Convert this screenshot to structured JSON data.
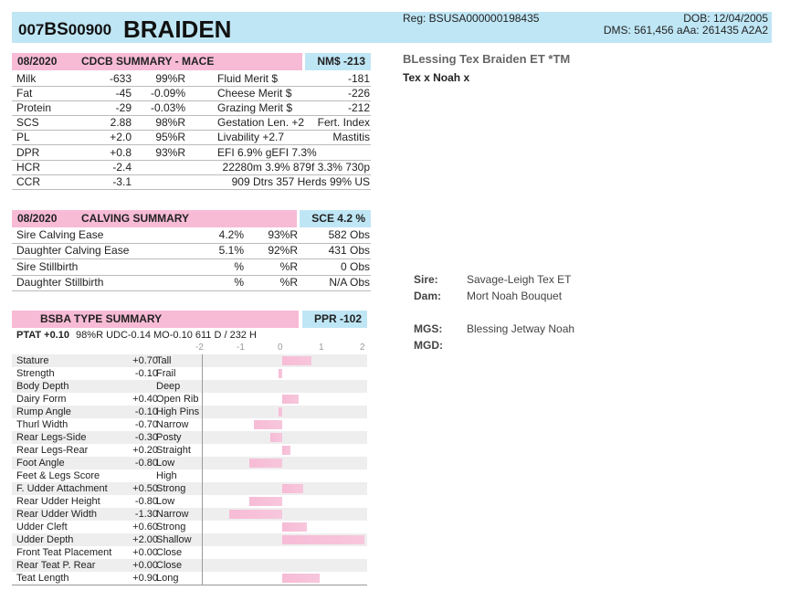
{
  "header": {
    "id_prefix": "007",
    "id_breed": "BS",
    "id_number": "00900",
    "name": "BRAIDEN",
    "reg": "Reg: BSUSA000000198435",
    "dob": "DOB: 12/04/2005",
    "dms": "DMS: 561,456  aAa: 261435    A2A2"
  },
  "cdcb": {
    "date": "08/2020",
    "title": "CDCB SUMMARY - MACE",
    "nm": "NM$ -213",
    "rows": [
      {
        "trait": "Milk",
        "value": "-633",
        "rel": "99%R",
        "merit": "Fluid Merit $",
        "merit_val": "-181"
      },
      {
        "trait": "Fat",
        "value": "-45",
        "rel": "-0.09%",
        "merit": "Cheese Merit $",
        "merit_val": "-226"
      },
      {
        "trait": "Protein",
        "value": "-29",
        "rel": "-0.03%",
        "merit": "Grazing Merit $",
        "merit_val": "-212"
      },
      {
        "trait": "SCS",
        "value": "2.88",
        "rel": "98%R",
        "merit": "Gestation Len. +2",
        "merit_val": "Fert. Index"
      },
      {
        "trait": "PL",
        "value": "+2.0",
        "rel": "95%R",
        "merit": "Livability   +2.7",
        "merit_val": "Mastitis"
      },
      {
        "trait": "DPR",
        "value": "+0.8",
        "rel": "93%R",
        "merit": "EFI  6.9%  gEFI  7.3%",
        "merit_val": ""
      },
      {
        "trait": "HCR",
        "value": "-2.4",
        "rel": "",
        "merit": "",
        "merit_val": "22280m  3.9%  879f  3.3%  730p"
      },
      {
        "trait": "CCR",
        "value": "-3.1",
        "rel": "",
        "merit": "",
        "merit_val": "909 Dtrs   357 Herds   99% US"
      }
    ]
  },
  "calving": {
    "date": "08/2020",
    "title": "CALVING SUMMARY",
    "sce": "SCE 4.2 %",
    "rows": [
      {
        "label": "Sire Calving Ease",
        "pct": "4.2%",
        "rel": "93%R",
        "obs": "582 Obs"
      },
      {
        "label": "Daughter Calving Ease",
        "pct": "5.1%",
        "rel": "92%R",
        "obs": "431 Obs"
      },
      {
        "label": "Sire Stillbirth",
        "pct": "%",
        "rel": "%R",
        "obs": "0 Obs"
      },
      {
        "label": "Daughter Stillbirth",
        "pct": "%",
        "rel": "%R",
        "obs": "N/A Obs"
      }
    ]
  },
  "type": {
    "title": "BSBA TYPE SUMMARY",
    "ppr": "PPR -102",
    "ptat_label": "PTAT +0.10",
    "ptat_rest": "98%R   UDC-0.14   MO-0.10     611 D / 232 H",
    "scale": [
      "-2",
      "-1",
      "0",
      "1",
      "2"
    ],
    "traits": [
      {
        "name": "Stature",
        "value": "+0.70",
        "desc": "Tall",
        "v": 0.7
      },
      {
        "name": "Strength",
        "value": "-0.10",
        "desc": "Frail",
        "v": -0.1
      },
      {
        "name": "Body Depth",
        "value": "",
        "desc": "Deep",
        "v": 0
      },
      {
        "name": "Dairy Form",
        "value": "+0.40",
        "desc": "Open Rib",
        "v": 0.4
      },
      {
        "name": "Rump Angle",
        "value": "-0.10",
        "desc": "High Pins",
        "v": -0.1
      },
      {
        "name": "Thurl Width",
        "value": "-0.70",
        "desc": "Narrow",
        "v": -0.7
      },
      {
        "name": "Rear Legs-Side",
        "value": "-0.30",
        "desc": "Posty",
        "v": -0.3
      },
      {
        "name": "Rear Legs-Rear",
        "value": "+0.20",
        "desc": "Straight",
        "v": 0.2
      },
      {
        "name": "Foot Angle",
        "value": "-0.80",
        "desc": "Low",
        "v": -0.8
      },
      {
        "name": "Feet & Legs Score",
        "value": "",
        "desc": "High",
        "v": 0
      },
      {
        "name": "F. Udder Attachment",
        "value": "+0.50",
        "desc": "Strong",
        "v": 0.5
      },
      {
        "name": "Rear Udder Height",
        "value": "-0.80",
        "desc": "Low",
        "v": -0.8
      },
      {
        "name": "Rear Udder Width",
        "value": "-1.30",
        "desc": "Narrow",
        "v": -1.3
      },
      {
        "name": "Udder Cleft",
        "value": "+0.60",
        "desc": "Strong",
        "v": 0.6
      },
      {
        "name": "Udder Depth",
        "value": "+2.00",
        "desc": "Shallow",
        "v": 2.0
      },
      {
        "name": "Front Teat Placement",
        "value": "+0.00",
        "desc": "Close",
        "v": 0
      },
      {
        "name": "Rear Teat P. Rear",
        "value": "+0.00",
        "desc": "Close",
        "v": 0
      },
      {
        "name": "Teat Length",
        "value": "+0.90",
        "desc": "Long",
        "v": 0.9
      }
    ]
  },
  "pedigree": {
    "full_name": "BLessing Tex Braiden ET *TM",
    "cross": "Tex x Noah x",
    "sire_label": "Sire:",
    "sire": "Savage-Leigh Tex ET",
    "dam_label": "Dam:",
    "dam": "Mort Noah Bouquet",
    "mgs_label": "MGS:",
    "mgs": "Blessing Jetway Noah",
    "mgd_label": "MGD:",
    "mgd": ""
  },
  "colors": {
    "pink": "#f7bbd6",
    "blue": "#bfe6f5"
  }
}
